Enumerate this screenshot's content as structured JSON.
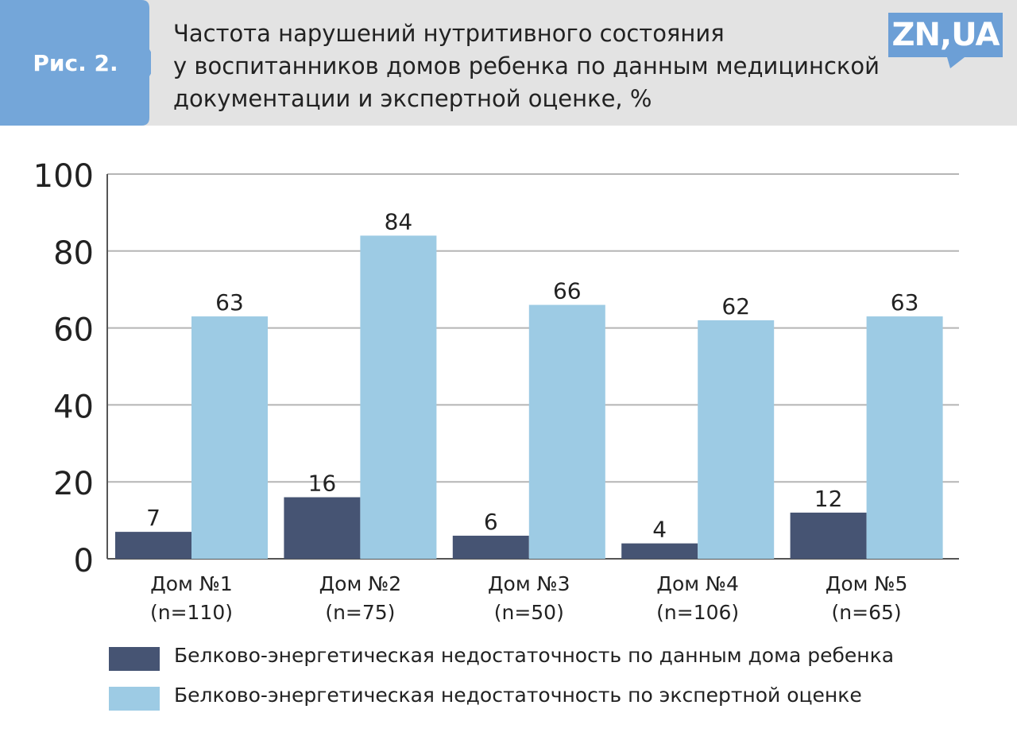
{
  "header": {
    "figure_label": "Рис. 2.",
    "title_lines": [
      "Частота нарушений нутритивного состояния",
      "у воспитанников домов ребенка по данным медицинской",
      "документации и экспертной оценке, %"
    ],
    "logo_text": "ZN,UA",
    "tab_color": "#74a6d9",
    "logo_color": "#6c9fd6"
  },
  "chart_data": {
    "type": "bar",
    "title": "",
    "xlabel": "",
    "ylabel": "",
    "ylim": [
      0,
      100
    ],
    "yticks": [
      0,
      20,
      40,
      60,
      80,
      100
    ],
    "grid": true,
    "legend_position": "bottom",
    "categories": [
      [
        "Дом №1",
        "(n=110)"
      ],
      [
        "Дом №2",
        "(n=75)"
      ],
      [
        "Дом №3",
        "(n=50)"
      ],
      [
        "Дом №4",
        "(n=106)"
      ],
      [
        "Дом №5",
        "(n=65)"
      ]
    ],
    "series": [
      {
        "name": "Белково-энергетическая недостаточность по данным дома ребенка",
        "color": "#465473",
        "values": [
          7,
          16,
          6,
          4,
          12
        ]
      },
      {
        "name": "Белково-энергетическая недостаточность по экспертной оценке",
        "color": "#9dcbe4",
        "values": [
          63,
          84,
          66,
          62,
          63
        ]
      }
    ]
  }
}
